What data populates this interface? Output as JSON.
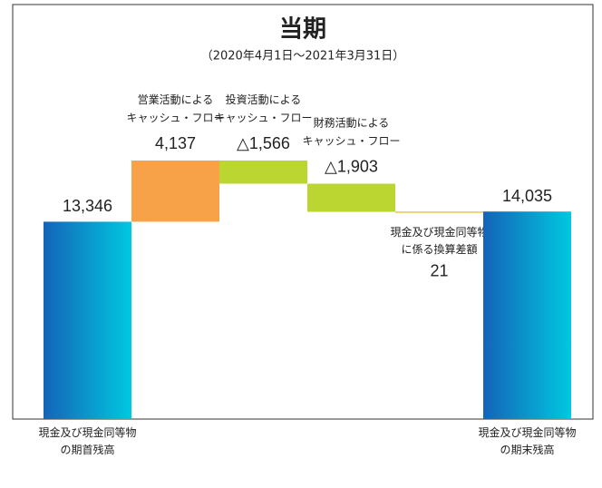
{
  "chart_data": {
    "type": "waterfall",
    "title": "当期",
    "subtitle": "（2020年4月1日〜2021年3月31日）",
    "categories": [
      [
        "現金及び現金同等物",
        "の期首残高"
      ],
      [
        "営業活動による",
        "キャッシュ・フロー"
      ],
      [
        "投資活動による",
        "キャッシュ・フロー"
      ],
      [
        "財務活動による",
        "キャッシュ・フロー"
      ],
      [
        "現金及び現金同等物",
        "に係る換算差額"
      ],
      [
        "現金及び現金同等物",
        "の期末残高"
      ]
    ],
    "values": [
      13346,
      4137,
      -1566,
      -1903,
      21,
      14035
    ],
    "value_labels": [
      "13,346",
      "4,137",
      "△1,566",
      "△1,903",
      "21",
      "14,035"
    ],
    "colors": [
      "#1464b8",
      "#f7a249",
      "#bcd631",
      "#bcd631",
      "#e8c850",
      "#1464b8"
    ]
  }
}
